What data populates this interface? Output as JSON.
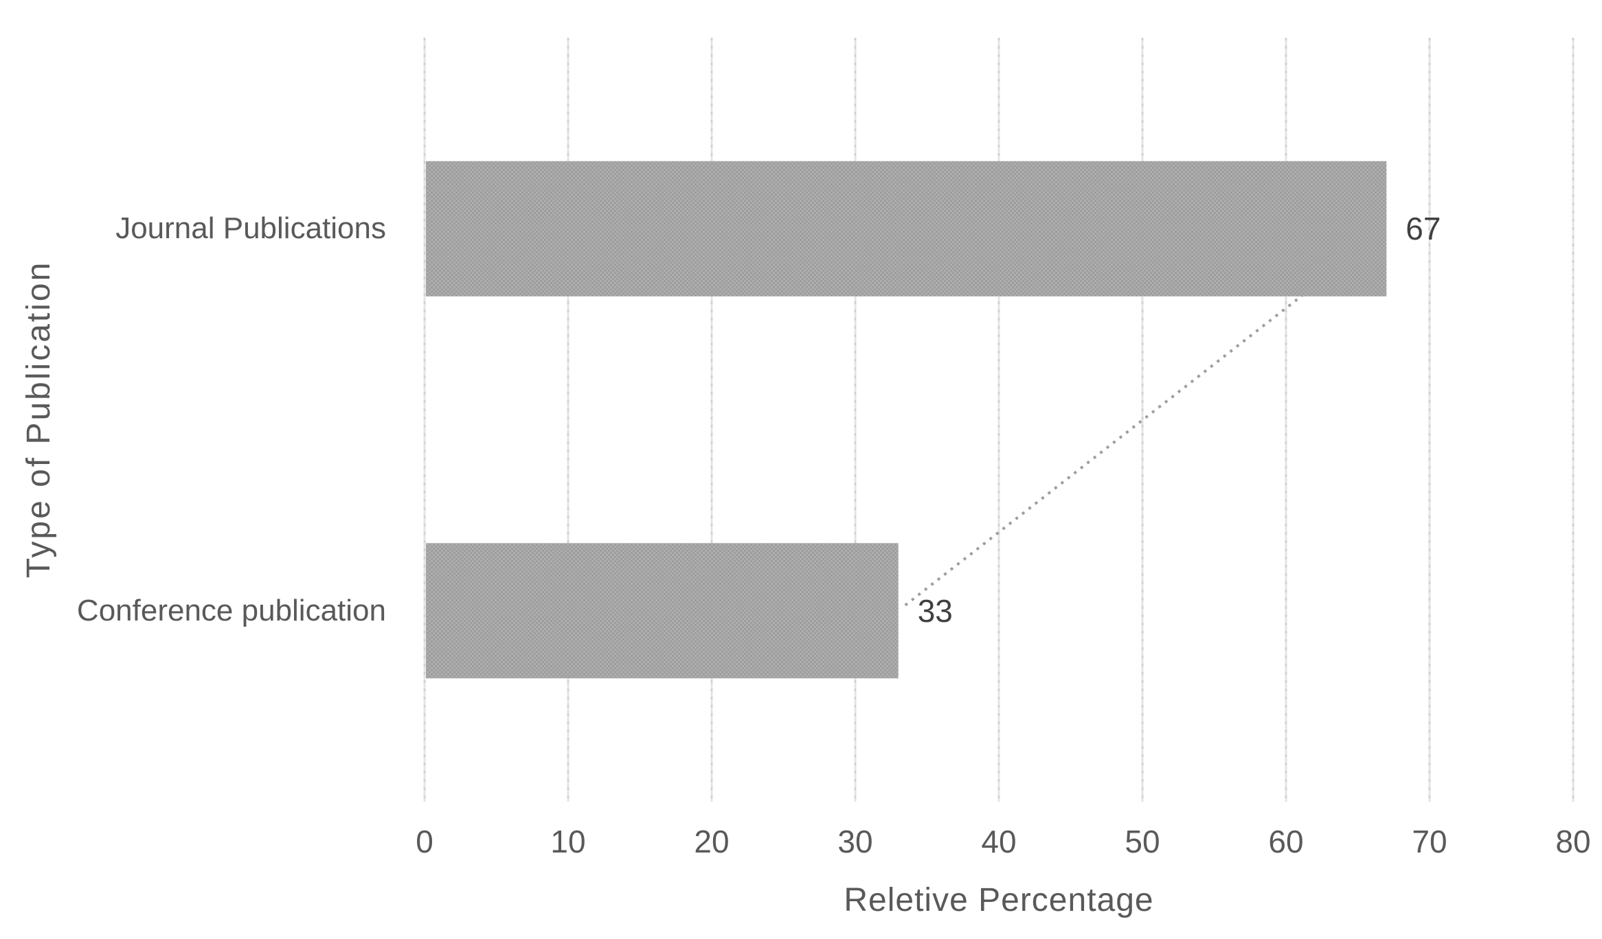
{
  "chart_data": {
    "type": "bar",
    "orientation": "horizontal",
    "categories": [
      "Journal Publications",
      "Conference publication"
    ],
    "values": [
      67,
      33
    ],
    "data_labels": [
      "67",
      "33"
    ],
    "xlabel": "Reletive Percentage",
    "ylabel": "Type of Publication",
    "xlim": [
      0,
      80
    ],
    "x_ticks": [
      0,
      10,
      20,
      30,
      40,
      50,
      60,
      70,
      80
    ],
    "grid": true,
    "legend": false,
    "bar_fill_pattern": "checker-dots",
    "trendline": {
      "style": "dotted",
      "from": {
        "category_index": 1,
        "value": 33
      },
      "to": {
        "category_index": 0,
        "value": 67
      }
    },
    "colors": {
      "background": "#ffffff",
      "bar_dark": "#9d9d9d",
      "bar_light": "#aeaeae",
      "gridline_base": "#e4e4e4",
      "gridline_dash": "#d2d2d2",
      "trendline": "#9e9e9e",
      "axis_text": "#595959",
      "value_text": "#404040"
    }
  }
}
